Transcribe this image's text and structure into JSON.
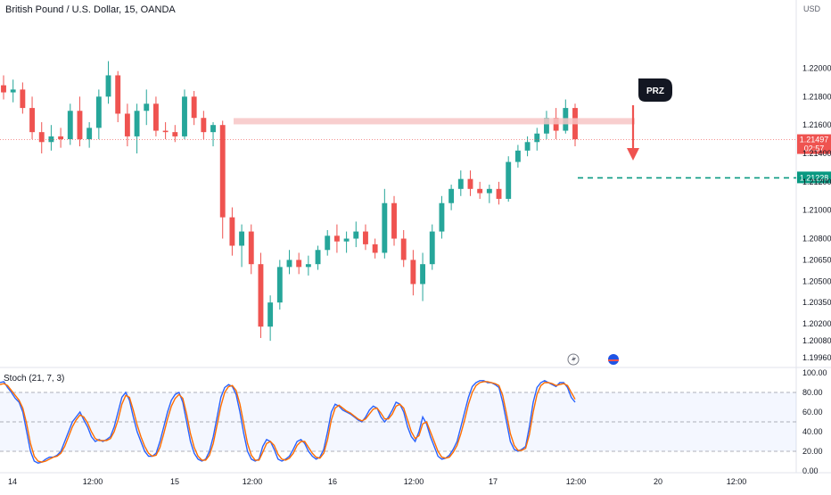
{
  "header": {
    "title": "British Pound / U.S. Dollar, 15, OANDA",
    "currency": "USD"
  },
  "colors": {
    "up": "#26a69a",
    "down": "#ef5350",
    "stoch_k": "#2962ff",
    "stoch_d": "#ff6d00",
    "target": "#089981",
    "zone": "#f7c5c5"
  },
  "chart_data": [
    {
      "type": "candlestick",
      "title": "British Pound / U.S. Dollar, 15, OANDA",
      "y_ticks": [
        1.22,
        1.218,
        1.216,
        1.214,
        1.212,
        1.21,
        1.208,
        1.2065,
        1.205,
        1.2035,
        1.202,
        1.2008,
        1.1996
      ],
      "ylim": [
        1.19905,
        1.22355
      ],
      "x_ticks": [
        "14",
        "12:00",
        "15",
        "12:00",
        "16",
        "12:00",
        "17",
        "12:00",
        "20",
        "12:00"
      ],
      "candles_ohlc_approx": [
        [
          1.2188,
          1.2195,
          1.2178,
          1.2183
        ],
        [
          1.2183,
          1.2192,
          1.2176,
          1.2185
        ],
        [
          1.2185,
          1.219,
          1.2168,
          1.2172
        ],
        [
          1.2172,
          1.218,
          1.215,
          1.2155
        ],
        [
          1.2155,
          1.2162,
          1.214,
          1.2148
        ],
        [
          1.2148,
          1.216,
          1.2142,
          1.2152
        ],
        [
          1.2152,
          1.2158,
          1.2144,
          1.215
        ],
        [
          1.215,
          1.2175,
          1.2146,
          1.217
        ],
        [
          1.217,
          1.218,
          1.2145,
          1.215
        ],
        [
          1.215,
          1.2162,
          1.2144,
          1.2158
        ],
        [
          1.2158,
          1.2185,
          1.215,
          1.218
        ],
        [
          1.218,
          1.2205,
          1.2175,
          1.2195
        ],
        [
          1.2195,
          1.2198,
          1.2162,
          1.2168
        ],
        [
          1.2168,
          1.2175,
          1.2145,
          1.2152
        ],
        [
          1.2152,
          1.2175,
          1.214,
          1.217
        ],
        [
          1.217,
          1.2185,
          1.216,
          1.2175
        ],
        [
          1.2175,
          1.218,
          1.2152,
          1.2156
        ],
        [
          1.2156,
          1.2162,
          1.215,
          1.2155
        ],
        [
          1.2155,
          1.216,
          1.2148,
          1.2152
        ],
        [
          1.2152,
          1.2185,
          1.215,
          1.218
        ],
        [
          1.218,
          1.2184,
          1.216,
          1.2165
        ],
        [
          1.2165,
          1.217,
          1.215,
          1.2155
        ],
        [
          1.2155,
          1.2162,
          1.2145,
          1.216
        ],
        [
          1.216,
          1.2163,
          1.208,
          1.2095
        ],
        [
          1.2095,
          1.2102,
          1.2068,
          1.2075
        ],
        [
          1.2075,
          1.209,
          1.206,
          1.2085
        ],
        [
          1.2085,
          1.209,
          1.2055,
          1.2062
        ],
        [
          1.2062,
          1.207,
          1.201,
          1.2018
        ],
        [
          1.2018,
          1.204,
          1.2008,
          1.2035
        ],
        [
          1.2035,
          1.2065,
          1.203,
          1.206
        ],
        [
          1.206,
          1.2072,
          1.2055,
          1.2065
        ],
        [
          1.2065,
          1.207,
          1.2055,
          1.206
        ],
        [
          1.206,
          1.2068,
          1.2054,
          1.2062
        ],
        [
          1.2062,
          1.2075,
          1.2058,
          1.2072
        ],
        [
          1.2072,
          1.2086,
          1.2068,
          1.2082
        ],
        [
          1.2082,
          1.209,
          1.207,
          1.2078
        ],
        [
          1.2078,
          1.2085,
          1.207,
          1.208
        ],
        [
          1.208,
          1.2092,
          1.2074,
          1.2085
        ],
        [
          1.2085,
          1.209,
          1.2072,
          1.2076
        ],
        [
          1.2076,
          1.208,
          1.2066,
          1.207
        ],
        [
          1.207,
          1.2115,
          1.2066,
          1.2105
        ],
        [
          1.2105,
          1.211,
          1.2075,
          1.208
        ],
        [
          1.208,
          1.2086,
          1.206,
          1.2065
        ],
        [
          1.2065,
          1.2072,
          1.204,
          1.2048
        ],
        [
          1.2048,
          1.207,
          1.2036,
          1.2062
        ],
        [
          1.2062,
          1.209,
          1.2058,
          1.2085
        ],
        [
          1.2085,
          1.211,
          1.208,
          1.2105
        ],
        [
          1.2105,
          1.2118,
          1.21,
          1.2115
        ],
        [
          1.2115,
          1.2128,
          1.211,
          1.2122
        ],
        [
          1.2122,
          1.2128,
          1.211,
          1.2115
        ],
        [
          1.2115,
          1.212,
          1.2108,
          1.2112
        ],
        [
          1.2112,
          1.2118,
          1.2105,
          1.2115
        ],
        [
          1.2115,
          1.212,
          1.2104,
          1.2108
        ],
        [
          1.2108,
          1.2138,
          1.2106,
          1.2134
        ],
        [
          1.2134,
          1.2146,
          1.213,
          1.2142
        ],
        [
          1.2142,
          1.2152,
          1.2138,
          1.2148
        ],
        [
          1.2148,
          1.2158,
          1.2142,
          1.2154
        ],
        [
          1.2154,
          1.217,
          1.215,
          1.2165
        ],
        [
          1.2165,
          1.2172,
          1.215,
          1.2156
        ],
        [
          1.2156,
          1.2178,
          1.2154,
          1.2172
        ],
        [
          1.2172,
          1.2175,
          1.2145,
          1.215
        ]
      ],
      "zone_y": 1.2163,
      "current_price": "1.21497",
      "countdown": "02:57",
      "target_price": "1.21228",
      "annotation": "PRZ"
    },
    {
      "type": "line",
      "title": "Stoch (21, 7, 3)",
      "y_ticks": [
        100.0,
        80.0,
        60.0,
        40.0,
        20.0,
        0.0
      ],
      "y_tick_labels": [
        "100.00",
        "80.00",
        "60.00",
        "40.00",
        "20.00",
        "0.00"
      ],
      "ylim": [
        0,
        100
      ],
      "levels": [
        80,
        50,
        20
      ],
      "series": [
        {
          "values": [
            90,
            91,
            85,
            80,
            74,
            70,
            60,
            40,
            20,
            10,
            8,
            9,
            12,
            14,
            14,
            16,
            20,
            30,
            40,
            50,
            55,
            60,
            52,
            45,
            35,
            30,
            32,
            30,
            32,
            35,
            45,
            60,
            75,
            80,
            72,
            55,
            40,
            30,
            20,
            15,
            15,
            18,
            30,
            45,
            60,
            72,
            78,
            80,
            70,
            50,
            30,
            18,
            12,
            10,
            12,
            20,
            35,
            55,
            75,
            85,
            88,
            86,
            78,
            60,
            38,
            20,
            12,
            10,
            12,
            25,
            32,
            30,
            22,
            12,
            10,
            12,
            15,
            22,
            30,
            32,
            28,
            20,
            15,
            12,
            14,
            22,
            40,
            60,
            68,
            66,
            62,
            60,
            58,
            55,
            52,
            50,
            55,
            62,
            66,
            64,
            55,
            50,
            55,
            62,
            70,
            68,
            60,
            45,
            35,
            30,
            40,
            55,
            48,
            35,
            25,
            15,
            12,
            13,
            16,
            22,
            30,
            45,
            60,
            75,
            86,
            90,
            92,
            92,
            90,
            90,
            88,
            85,
            70,
            50,
            30,
            22,
            20,
            22,
            25,
            45,
            70,
            85,
            90,
            92,
            90,
            88,
            86,
            90,
            90,
            85,
            75,
            70
          ]
        },
        {
          "values": [
            88,
            89,
            87,
            82,
            77,
            72,
            64,
            48,
            28,
            15,
            10,
            9,
            10,
            12,
            14,
            15,
            18,
            25,
            35,
            45,
            52,
            57,
            55,
            49,
            40,
            33,
            31,
            31,
            31,
            33,
            40,
            52,
            68,
            77,
            75,
            62,
            47,
            35,
            25,
            18,
            15,
            16,
            24,
            38,
            53,
            66,
            74,
            78,
            74,
            58,
            38,
            24,
            15,
            11,
            11,
            16,
            28,
            47,
            66,
            80,
            86,
            87,
            82,
            68,
            48,
            28,
            16,
            11,
            11,
            19,
            28,
            30,
            26,
            17,
            12,
            11,
            13,
            18,
            26,
            30,
            30,
            24,
            18,
            14,
            13,
            18,
            32,
            52,
            64,
            67,
            64,
            61,
            59,
            56,
            53,
            51,
            53,
            58,
            63,
            64,
            59,
            53,
            53,
            58,
            66,
            68,
            64,
            52,
            40,
            33,
            36,
            48,
            50,
            40,
            30,
            20,
            14,
            13,
            14,
            19,
            26,
            38,
            52,
            68,
            80,
            87,
            90,
            91,
            91,
            90,
            89,
            87,
            77,
            58,
            38,
            26,
            21,
            21,
            23,
            37,
            60,
            78,
            87,
            90,
            90,
            89,
            87,
            88,
            89,
            87,
            80,
            73
          ]
        }
      ]
    }
  ]
}
